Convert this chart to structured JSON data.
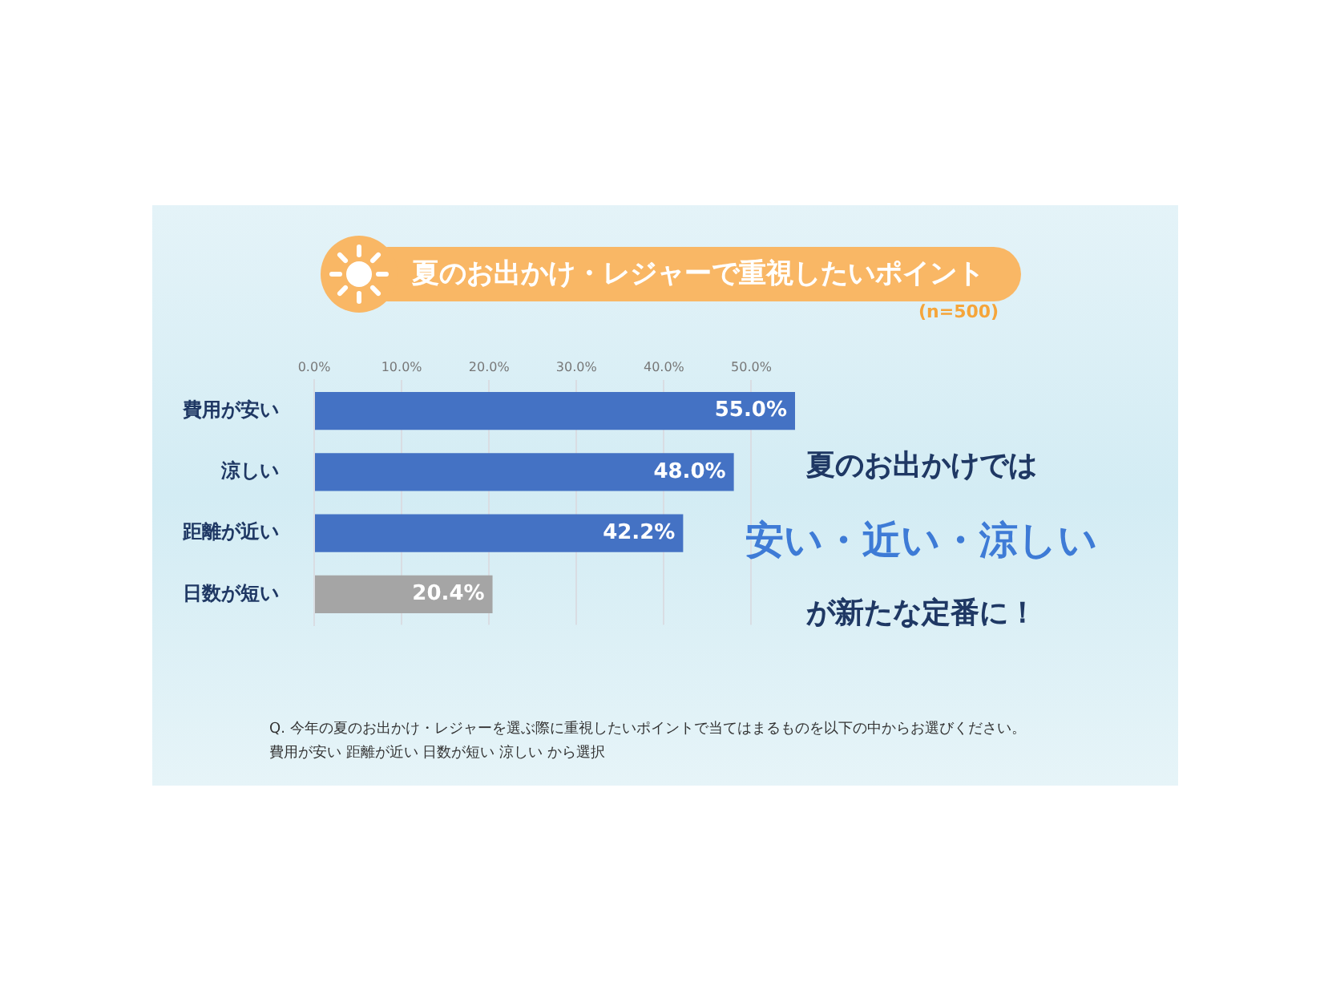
{
  "chart_data": {
    "type": "bar",
    "orientation": "horizontal",
    "title": "夏のお出かけ・レジャーで重視したいポイント",
    "subtitle": "(n=500)",
    "categories": [
      "費用が安い",
      "涼しい",
      "距離が近い",
      "日数が短い"
    ],
    "values": [
      55.0,
      48.0,
      42.2,
      20.4
    ],
    "colors": [
      "#4472c4",
      "#4472c4",
      "#4472c4",
      "#a5a5a5"
    ],
    "value_labels": [
      "55.0%",
      "48.0%",
      "42.2%",
      "20.4%"
    ],
    "xlim": [
      0,
      55
    ],
    "xticks": [
      {
        "value": 0,
        "label": "0.0%"
      },
      {
        "value": 10,
        "label": "10.0%"
      },
      {
        "value": 20,
        "label": "20.0%"
      },
      {
        "value": 30,
        "label": "30.0%"
      },
      {
        "value": 40,
        "label": "40.0%"
      },
      {
        "value": 50,
        "label": "50.0%"
      }
    ],
    "grid": "x",
    "legend": false,
    "annotations": [
      "夏のお出かけでは",
      "安い・近い・涼しい",
      "が新たな定番に！",
      "Q. 今年の夏のお出かけ・レジャーを選ぶ際に重視したいポイントで当てはまるものを以下の中からお選びください。",
      "費用が安い 距離が近い 日数が短い 涼しい から選択"
    ]
  }
}
